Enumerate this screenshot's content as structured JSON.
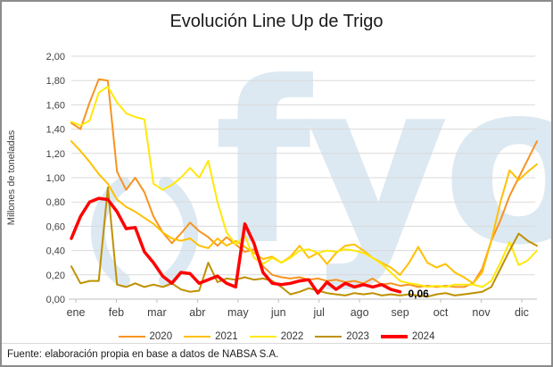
{
  "footer": {
    "source": "Fuente: elaboración propia en base a datos de NABSA S.A."
  },
  "watermark": {
    "text": "fyo",
    "color": "#DCE9F2"
  },
  "colors": {
    "gridline": "#D9D9D9",
    "axis_line": "#BFBFBF",
    "tick_text": "#404040",
    "title_text": "#1a1a1a",
    "annotation_text": "#000000",
    "border": "#8C8C8C"
  },
  "chart_data": {
    "type": "line",
    "title": "Evolución Line Up de Trigo",
    "ylabel": "Millones de toneladas",
    "xlabel": "",
    "ylim": [
      0,
      2.0
    ],
    "ytick_step": 0.2,
    "ytick_labels": [
      "0,00",
      "0,20",
      "0,40",
      "0,60",
      "0,80",
      "1,00",
      "1,20",
      "1,40",
      "1,60",
      "1,80",
      "2,00"
    ],
    "categories": [
      "ene",
      "feb",
      "mar",
      "abr",
      "may",
      "jun",
      "jul",
      "ago",
      "sep",
      "oct",
      "nov",
      "dic"
    ],
    "points_per_year": 52,
    "grid": "horizontal",
    "legend_position": "bottom",
    "annotation": {
      "text": "0,06",
      "series": "2024"
    },
    "series": [
      {
        "name": "2020",
        "color": "#F79420",
        "width": 2,
        "values": [
          1.45,
          1.4,
          1.62,
          1.81,
          1.8,
          1.05,
          0.9,
          1.0,
          0.88,
          0.68,
          0.55,
          0.46,
          0.54,
          0.63,
          0.56,
          0.51,
          0.44,
          0.51,
          0.45,
          0.39,
          0.41,
          0.27,
          0.2,
          0.18,
          0.17,
          0.18,
          0.16,
          0.17,
          0.15,
          0.16,
          0.14,
          0.15,
          0.13,
          0.17,
          0.12,
          0.13,
          0.11,
          0.12,
          0.1,
          0.11,
          0.1,
          0.11,
          0.1,
          0.1,
          0.13,
          0.25,
          0.48,
          0.65,
          0.85,
          1.0,
          1.15,
          1.3
        ]
      },
      {
        "name": "2021",
        "color": "#FFC000",
        "width": 2,
        "values": [
          1.3,
          1.22,
          1.13,
          1.03,
          0.95,
          0.82,
          0.76,
          0.72,
          0.67,
          0.62,
          0.55,
          0.5,
          0.48,
          0.5,
          0.44,
          0.42,
          0.5,
          0.44,
          0.48,
          0.43,
          0.38,
          0.33,
          0.35,
          0.3,
          0.35,
          0.44,
          0.34,
          0.38,
          0.29,
          0.38,
          0.44,
          0.45,
          0.4,
          0.34,
          0.3,
          0.26,
          0.2,
          0.3,
          0.43,
          0.3,
          0.26,
          0.29,
          0.22,
          0.18,
          0.13,
          0.22,
          0.48,
          0.8,
          1.06,
          0.98,
          1.05,
          1.11
        ]
      },
      {
        "name": "2022",
        "color": "#FFE80A",
        "width": 2,
        "values": [
          1.46,
          1.43,
          1.47,
          1.7,
          1.75,
          1.62,
          1.53,
          1.5,
          1.48,
          0.95,
          0.9,
          0.94,
          1.0,
          1.08,
          1.0,
          1.14,
          0.8,
          0.55,
          0.45,
          0.52,
          0.34,
          0.29,
          0.34,
          0.3,
          0.34,
          0.4,
          0.41,
          0.38,
          0.4,
          0.39,
          0.41,
          0.4,
          0.38,
          0.34,
          0.29,
          0.22,
          0.15,
          0.13,
          0.12,
          0.1,
          0.11,
          0.1,
          0.12,
          0.12,
          0.12,
          0.1,
          0.15,
          0.3,
          0.47,
          0.28,
          0.32,
          0.4
        ]
      },
      {
        "name": "2023",
        "color": "#BF9000",
        "width": 2,
        "values": [
          0.27,
          0.13,
          0.15,
          0.15,
          0.92,
          0.12,
          0.1,
          0.13,
          0.1,
          0.12,
          0.1,
          0.13,
          0.08,
          0.06,
          0.07,
          0.3,
          0.14,
          0.17,
          0.16,
          0.18,
          0.16,
          0.17,
          0.15,
          0.1,
          0.04,
          0.06,
          0.09,
          0.07,
          0.05,
          0.04,
          0.03,
          0.05,
          0.04,
          0.05,
          0.03,
          0.04,
          0.03,
          0.04,
          0.03,
          0.02,
          0.04,
          0.05,
          0.03,
          0.04,
          0.05,
          0.06,
          0.1,
          0.25,
          0.4,
          0.54,
          0.48,
          0.44
        ]
      },
      {
        "name": "2024",
        "color": "#FF0000",
        "width": 3.5,
        "values": [
          0.5,
          0.68,
          0.8,
          0.83,
          0.82,
          0.72,
          0.58,
          0.59,
          0.39,
          0.3,
          0.19,
          0.13,
          0.22,
          0.21,
          0.13,
          0.16,
          0.19,
          0.13,
          0.1,
          0.62,
          0.46,
          0.22,
          0.13,
          0.12,
          0.13,
          0.15,
          0.16,
          0.05,
          0.14,
          0.08,
          0.13,
          0.1,
          0.12,
          0.1,
          0.12,
          0.08,
          0.06
        ]
      }
    ]
  }
}
